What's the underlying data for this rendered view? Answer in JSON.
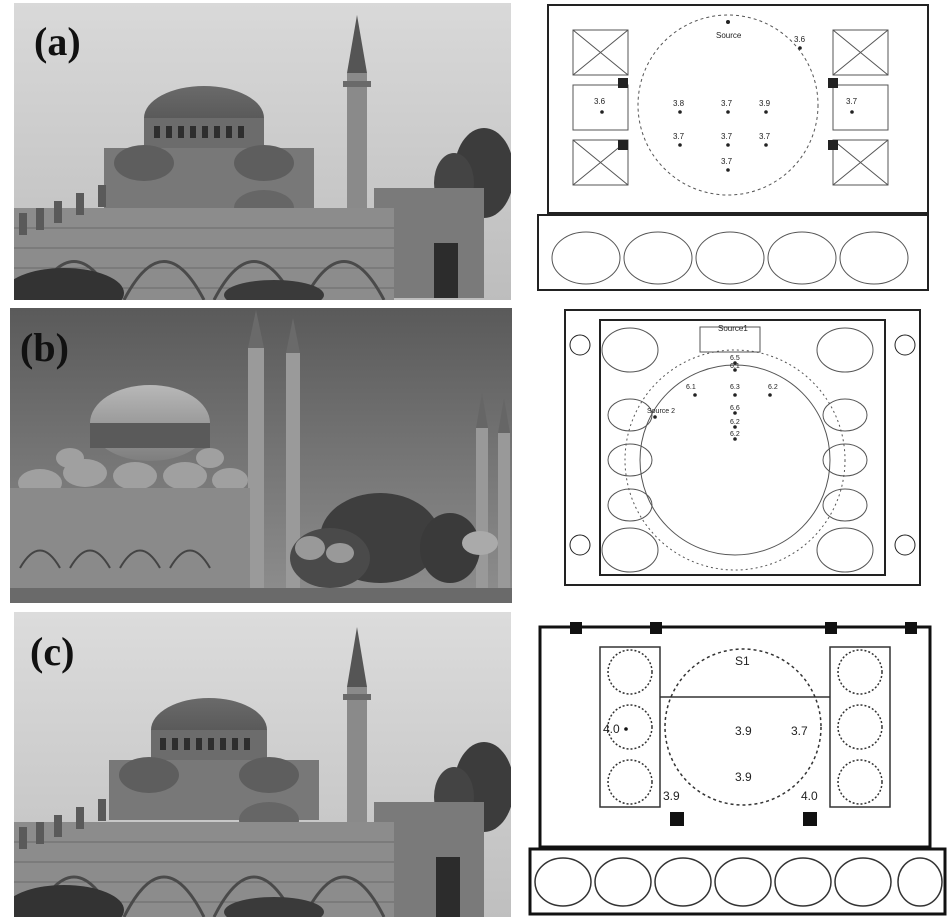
{
  "panels": [
    {
      "label": "(a)",
      "plan_source": "Source",
      "points": [
        "3.6",
        "3.6",
        "3.7",
        "3.8",
        "3.7",
        "3.9",
        "3.7",
        "3.7",
        "3.7",
        "3.7"
      ]
    },
    {
      "label": "(b)",
      "plan_source": "Source1",
      "plan_source2": "Source 2",
      "points": [
        "6.5",
        "6.1",
        "6.1",
        "6.3",
        "6.2",
        "6.6",
        "6.2",
        "6.2"
      ]
    },
    {
      "label": "(c)",
      "plan_source": "S1",
      "points": [
        "4.0",
        "3.9",
        "3.7",
        "3.9",
        "3.9",
        "4.0"
      ]
    }
  ]
}
